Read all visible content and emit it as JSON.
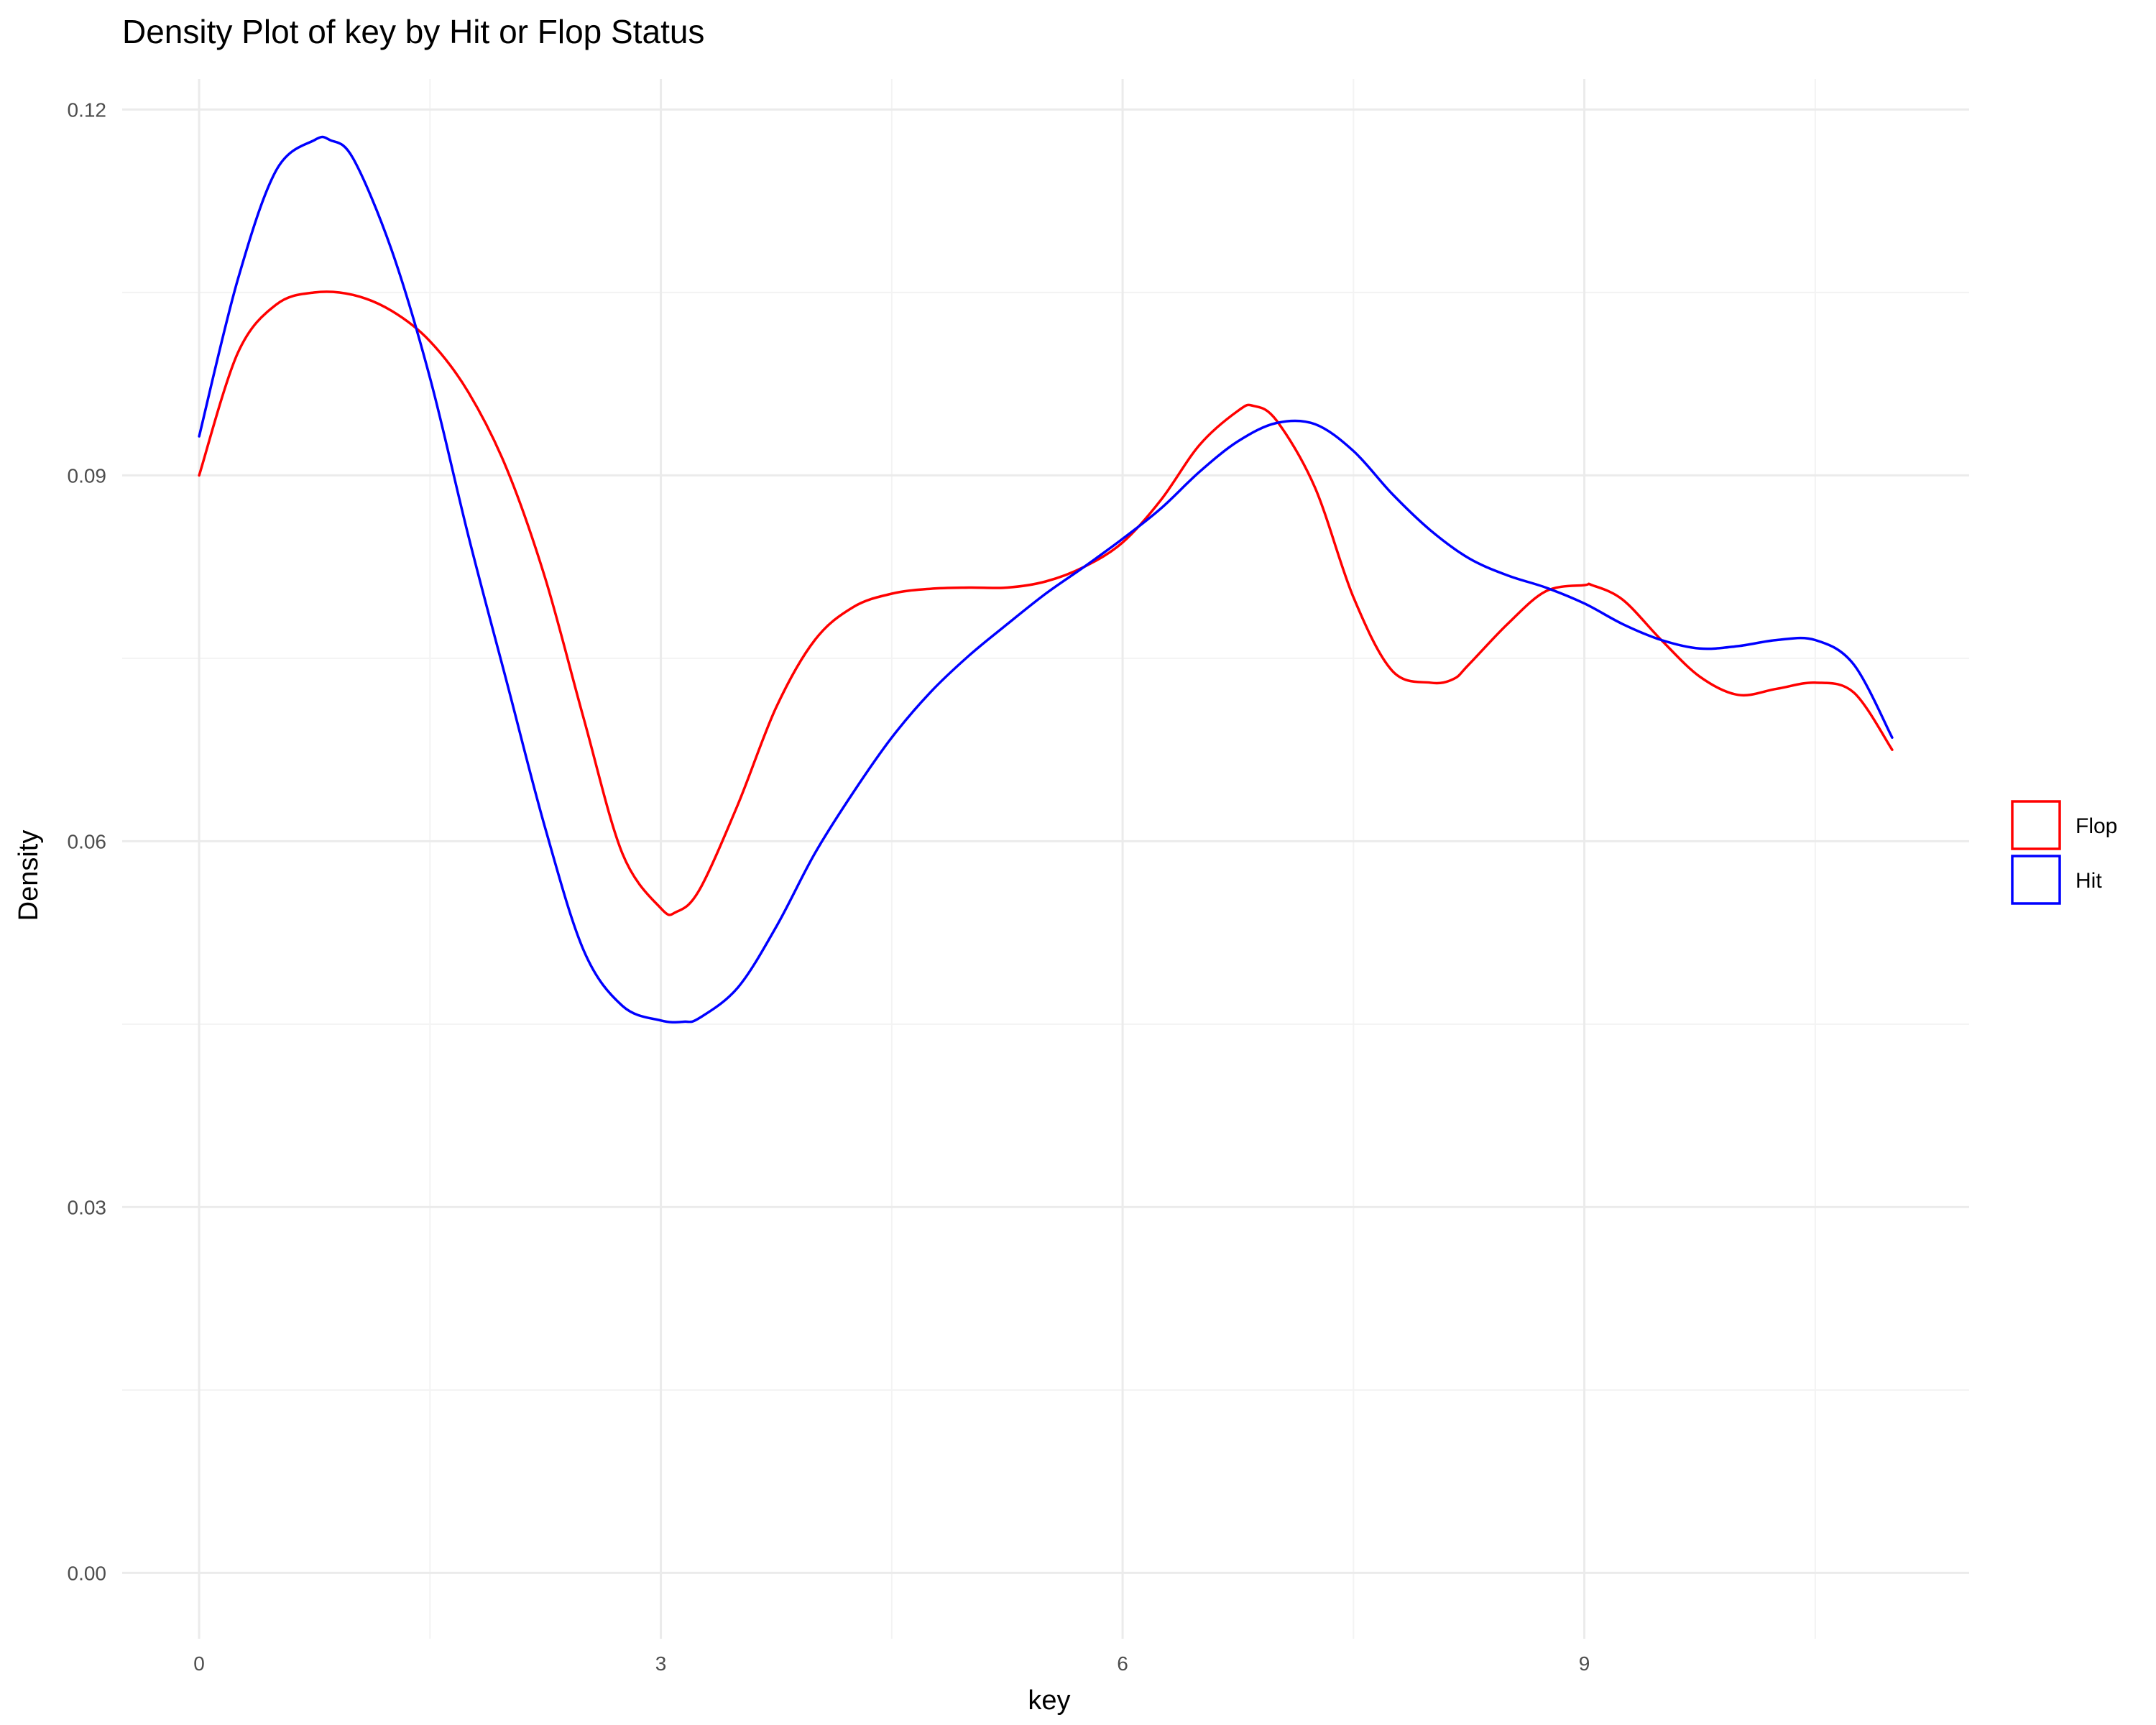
{
  "chart_data": {
    "type": "line",
    "title": "Density Plot of key by Hit or Flop Status",
    "xlabel": "key",
    "ylabel": "Density",
    "xlim": [
      -0.5,
      11.5
    ],
    "ylim": [
      -0.0054,
      0.1225
    ],
    "x_ticks": [
      0,
      3,
      6,
      9
    ],
    "x_tick_labels": [
      "0",
      "3",
      "6",
      "9"
    ],
    "y_ticks": [
      0.0,
      0.03,
      0.06,
      0.09,
      0.12
    ],
    "y_tick_labels": [
      "0.00",
      "0.03",
      "0.06",
      "0.09",
      "0.12"
    ],
    "grid": true,
    "legend_position": "right",
    "series": [
      {
        "name": "Flop",
        "color": "#ff0000",
        "x": [
          0,
          0.25,
          0.5,
          0.75,
          1.0,
          1.25,
          1.5,
          1.75,
          2.0,
          2.25,
          2.5,
          2.75,
          3.0,
          3.1,
          3.25,
          3.5,
          3.75,
          4.0,
          4.25,
          4.5,
          4.75,
          5.0,
          5.25,
          5.5,
          5.75,
          6.0,
          6.25,
          6.5,
          6.75,
          6.85,
          7.0,
          7.25,
          7.5,
          7.75,
          8.0,
          8.15,
          8.25,
          8.5,
          8.75,
          9.0,
          9.05,
          9.25,
          9.5,
          9.75,
          10.0,
          10.25,
          10.5,
          10.75,
          11.0
        ],
        "y": [
          0.09,
          0.1,
          0.104,
          0.105,
          0.1048,
          0.1035,
          0.101,
          0.0968,
          0.0905,
          0.0815,
          0.07,
          0.059,
          0.0545,
          0.0542,
          0.056,
          0.063,
          0.071,
          0.0765,
          0.0792,
          0.0803,
          0.0807,
          0.0808,
          0.0808,
          0.0813,
          0.0825,
          0.0845,
          0.088,
          0.0925,
          0.0953,
          0.0957,
          0.0945,
          0.089,
          0.08,
          0.074,
          0.073,
          0.0733,
          0.0745,
          0.0778,
          0.0805,
          0.081,
          0.081,
          0.0798,
          0.0765,
          0.0735,
          0.072,
          0.0725,
          0.073,
          0.0722,
          0.0675
        ]
      },
      {
        "name": "Hit",
        "color": "#0000ff",
        "x": [
          0,
          0.25,
          0.5,
          0.75,
          0.85,
          1.0,
          1.25,
          1.5,
          1.75,
          2.0,
          2.25,
          2.5,
          2.75,
          3.0,
          3.15,
          3.25,
          3.5,
          3.75,
          4.0,
          4.25,
          4.5,
          4.75,
          5.0,
          5.25,
          5.5,
          5.75,
          6.0,
          6.25,
          6.5,
          6.75,
          7.0,
          7.25,
          7.5,
          7.75,
          8.0,
          8.25,
          8.5,
          8.75,
          9.0,
          9.25,
          9.5,
          9.75,
          10.0,
          10.25,
          10.5,
          10.75,
          11.0
        ],
        "y": [
          0.0932,
          0.106,
          0.115,
          0.1175,
          0.1175,
          0.116,
          0.1085,
          0.098,
          0.085,
          0.073,
          0.061,
          0.051,
          0.0465,
          0.0453,
          0.0452,
          0.0455,
          0.048,
          0.053,
          0.059,
          0.064,
          0.0685,
          0.0722,
          0.0752,
          0.0778,
          0.0803,
          0.0825,
          0.0848,
          0.0873,
          0.0903,
          0.0928,
          0.0943,
          0.0942,
          0.092,
          0.0885,
          0.0855,
          0.0832,
          0.0818,
          0.0808,
          0.0795,
          0.0778,
          0.0765,
          0.0758,
          0.076,
          0.0765,
          0.0765,
          0.0745,
          0.0685
        ]
      }
    ]
  }
}
